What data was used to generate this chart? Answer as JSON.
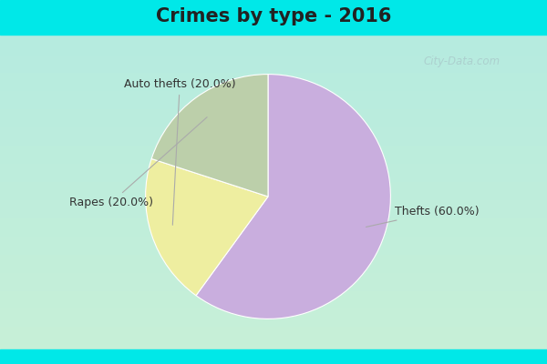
{
  "title": "Crimes by type - 2016",
  "title_fontsize": 15,
  "title_fontweight": "bold",
  "slices": [
    {
      "label": "Thefts (60.0%)",
      "value": 60,
      "color": "#C9AEDE"
    },
    {
      "label": "Auto thefts (20.0%)",
      "value": 20,
      "color": "#EEEEA0"
    },
    {
      "label": "Rapes (20.0%)",
      "value": 20,
      "color": "#BCCFAA"
    }
  ],
  "startangle": 90,
  "bg_color": "#C8EDE0",
  "bg_top_color": "#00E5E5",
  "bg_bottom_color": "#00E5E5",
  "watermark_text": "City-Data.com",
  "watermark_color": "#AACCCC",
  "label_fontsize": 9,
  "label_color": "#333333",
  "title_color": "#222222"
}
